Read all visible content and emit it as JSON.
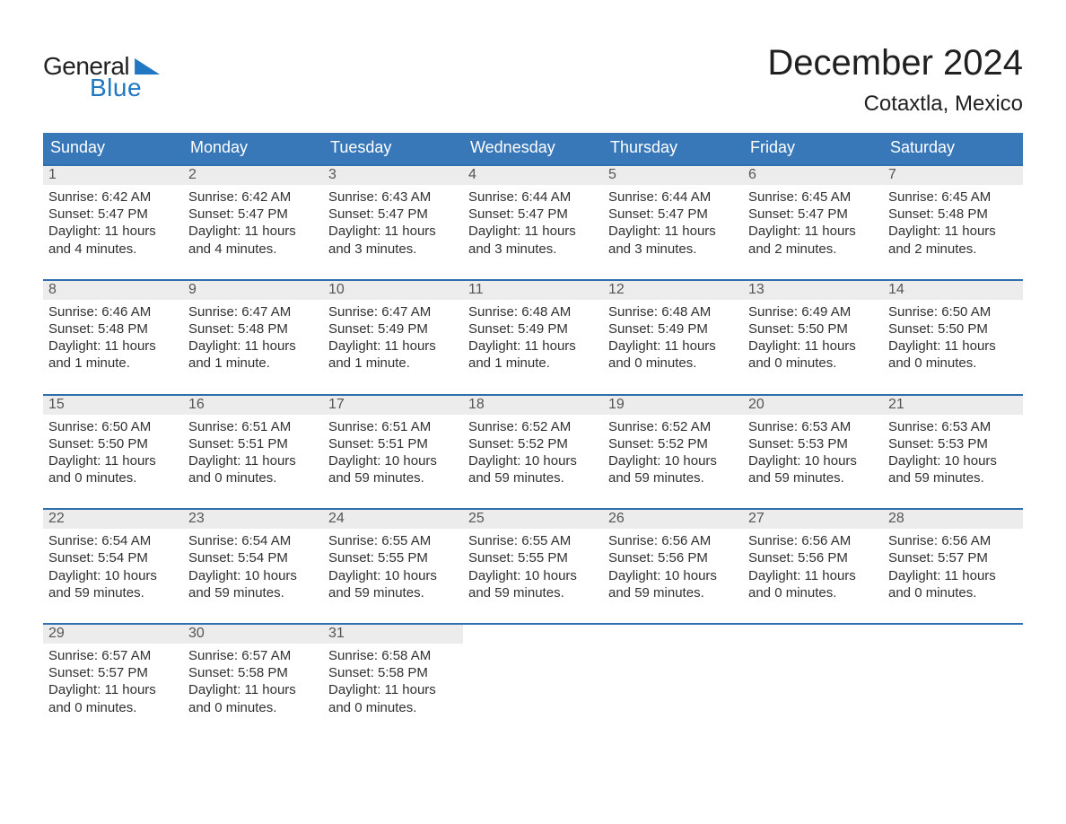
{
  "logo": {
    "word1": "General",
    "word2": "Blue"
  },
  "title": "December 2024",
  "location": "Cotaxtla, Mexico",
  "colors": {
    "header_blue": "#3878b8",
    "row_sep_blue": "#2f6fb0",
    "daynum_bg": "#ececec",
    "text": "#303030",
    "logo_blue": "#1f78c1",
    "background": "#ffffff"
  },
  "day_headers": [
    "Sunday",
    "Monday",
    "Tuesday",
    "Wednesday",
    "Thursday",
    "Friday",
    "Saturday"
  ],
  "weeks": [
    [
      {
        "n": "1",
        "sunrise": "Sunrise: 6:42 AM",
        "sunset": "Sunset: 5:47 PM",
        "dl1": "Daylight: 11 hours",
        "dl2": "and 4 minutes."
      },
      {
        "n": "2",
        "sunrise": "Sunrise: 6:42 AM",
        "sunset": "Sunset: 5:47 PM",
        "dl1": "Daylight: 11 hours",
        "dl2": "and 4 minutes."
      },
      {
        "n": "3",
        "sunrise": "Sunrise: 6:43 AM",
        "sunset": "Sunset: 5:47 PM",
        "dl1": "Daylight: 11 hours",
        "dl2": "and 3 minutes."
      },
      {
        "n": "4",
        "sunrise": "Sunrise: 6:44 AM",
        "sunset": "Sunset: 5:47 PM",
        "dl1": "Daylight: 11 hours",
        "dl2": "and 3 minutes."
      },
      {
        "n": "5",
        "sunrise": "Sunrise: 6:44 AM",
        "sunset": "Sunset: 5:47 PM",
        "dl1": "Daylight: 11 hours",
        "dl2": "and 3 minutes."
      },
      {
        "n": "6",
        "sunrise": "Sunrise: 6:45 AM",
        "sunset": "Sunset: 5:47 PM",
        "dl1": "Daylight: 11 hours",
        "dl2": "and 2 minutes."
      },
      {
        "n": "7",
        "sunrise": "Sunrise: 6:45 AM",
        "sunset": "Sunset: 5:48 PM",
        "dl1": "Daylight: 11 hours",
        "dl2": "and 2 minutes."
      }
    ],
    [
      {
        "n": "8",
        "sunrise": "Sunrise: 6:46 AM",
        "sunset": "Sunset: 5:48 PM",
        "dl1": "Daylight: 11 hours",
        "dl2": "and 1 minute."
      },
      {
        "n": "9",
        "sunrise": "Sunrise: 6:47 AM",
        "sunset": "Sunset: 5:48 PM",
        "dl1": "Daylight: 11 hours",
        "dl2": "and 1 minute."
      },
      {
        "n": "10",
        "sunrise": "Sunrise: 6:47 AM",
        "sunset": "Sunset: 5:49 PM",
        "dl1": "Daylight: 11 hours",
        "dl2": "and 1 minute."
      },
      {
        "n": "11",
        "sunrise": "Sunrise: 6:48 AM",
        "sunset": "Sunset: 5:49 PM",
        "dl1": "Daylight: 11 hours",
        "dl2": "and 1 minute."
      },
      {
        "n": "12",
        "sunrise": "Sunrise: 6:48 AM",
        "sunset": "Sunset: 5:49 PM",
        "dl1": "Daylight: 11 hours",
        "dl2": "and 0 minutes."
      },
      {
        "n": "13",
        "sunrise": "Sunrise: 6:49 AM",
        "sunset": "Sunset: 5:50 PM",
        "dl1": "Daylight: 11 hours",
        "dl2": "and 0 minutes."
      },
      {
        "n": "14",
        "sunrise": "Sunrise: 6:50 AM",
        "sunset": "Sunset: 5:50 PM",
        "dl1": "Daylight: 11 hours",
        "dl2": "and 0 minutes."
      }
    ],
    [
      {
        "n": "15",
        "sunrise": "Sunrise: 6:50 AM",
        "sunset": "Sunset: 5:50 PM",
        "dl1": "Daylight: 11 hours",
        "dl2": "and 0 minutes."
      },
      {
        "n": "16",
        "sunrise": "Sunrise: 6:51 AM",
        "sunset": "Sunset: 5:51 PM",
        "dl1": "Daylight: 11 hours",
        "dl2": "and 0 minutes."
      },
      {
        "n": "17",
        "sunrise": "Sunrise: 6:51 AM",
        "sunset": "Sunset: 5:51 PM",
        "dl1": "Daylight: 10 hours",
        "dl2": "and 59 minutes."
      },
      {
        "n": "18",
        "sunrise": "Sunrise: 6:52 AM",
        "sunset": "Sunset: 5:52 PM",
        "dl1": "Daylight: 10 hours",
        "dl2": "and 59 minutes."
      },
      {
        "n": "19",
        "sunrise": "Sunrise: 6:52 AM",
        "sunset": "Sunset: 5:52 PM",
        "dl1": "Daylight: 10 hours",
        "dl2": "and 59 minutes."
      },
      {
        "n": "20",
        "sunrise": "Sunrise: 6:53 AM",
        "sunset": "Sunset: 5:53 PM",
        "dl1": "Daylight: 10 hours",
        "dl2": "and 59 minutes."
      },
      {
        "n": "21",
        "sunrise": "Sunrise: 6:53 AM",
        "sunset": "Sunset: 5:53 PM",
        "dl1": "Daylight: 10 hours",
        "dl2": "and 59 minutes."
      }
    ],
    [
      {
        "n": "22",
        "sunrise": "Sunrise: 6:54 AM",
        "sunset": "Sunset: 5:54 PM",
        "dl1": "Daylight: 10 hours",
        "dl2": "and 59 minutes."
      },
      {
        "n": "23",
        "sunrise": "Sunrise: 6:54 AM",
        "sunset": "Sunset: 5:54 PM",
        "dl1": "Daylight: 10 hours",
        "dl2": "and 59 minutes."
      },
      {
        "n": "24",
        "sunrise": "Sunrise: 6:55 AM",
        "sunset": "Sunset: 5:55 PM",
        "dl1": "Daylight: 10 hours",
        "dl2": "and 59 minutes."
      },
      {
        "n": "25",
        "sunrise": "Sunrise: 6:55 AM",
        "sunset": "Sunset: 5:55 PM",
        "dl1": "Daylight: 10 hours",
        "dl2": "and 59 minutes."
      },
      {
        "n": "26",
        "sunrise": "Sunrise: 6:56 AM",
        "sunset": "Sunset: 5:56 PM",
        "dl1": "Daylight: 10 hours",
        "dl2": "and 59 minutes."
      },
      {
        "n": "27",
        "sunrise": "Sunrise: 6:56 AM",
        "sunset": "Sunset: 5:56 PM",
        "dl1": "Daylight: 11 hours",
        "dl2": "and 0 minutes."
      },
      {
        "n": "28",
        "sunrise": "Sunrise: 6:56 AM",
        "sunset": "Sunset: 5:57 PM",
        "dl1": "Daylight: 11 hours",
        "dl2": "and 0 minutes."
      }
    ],
    [
      {
        "n": "29",
        "sunrise": "Sunrise: 6:57 AM",
        "sunset": "Sunset: 5:57 PM",
        "dl1": "Daylight: 11 hours",
        "dl2": "and 0 minutes."
      },
      {
        "n": "30",
        "sunrise": "Sunrise: 6:57 AM",
        "sunset": "Sunset: 5:58 PM",
        "dl1": "Daylight: 11 hours",
        "dl2": "and 0 minutes."
      },
      {
        "n": "31",
        "sunrise": "Sunrise: 6:58 AM",
        "sunset": "Sunset: 5:58 PM",
        "dl1": "Daylight: 11 hours",
        "dl2": "and 0 minutes."
      },
      null,
      null,
      null,
      null
    ]
  ]
}
